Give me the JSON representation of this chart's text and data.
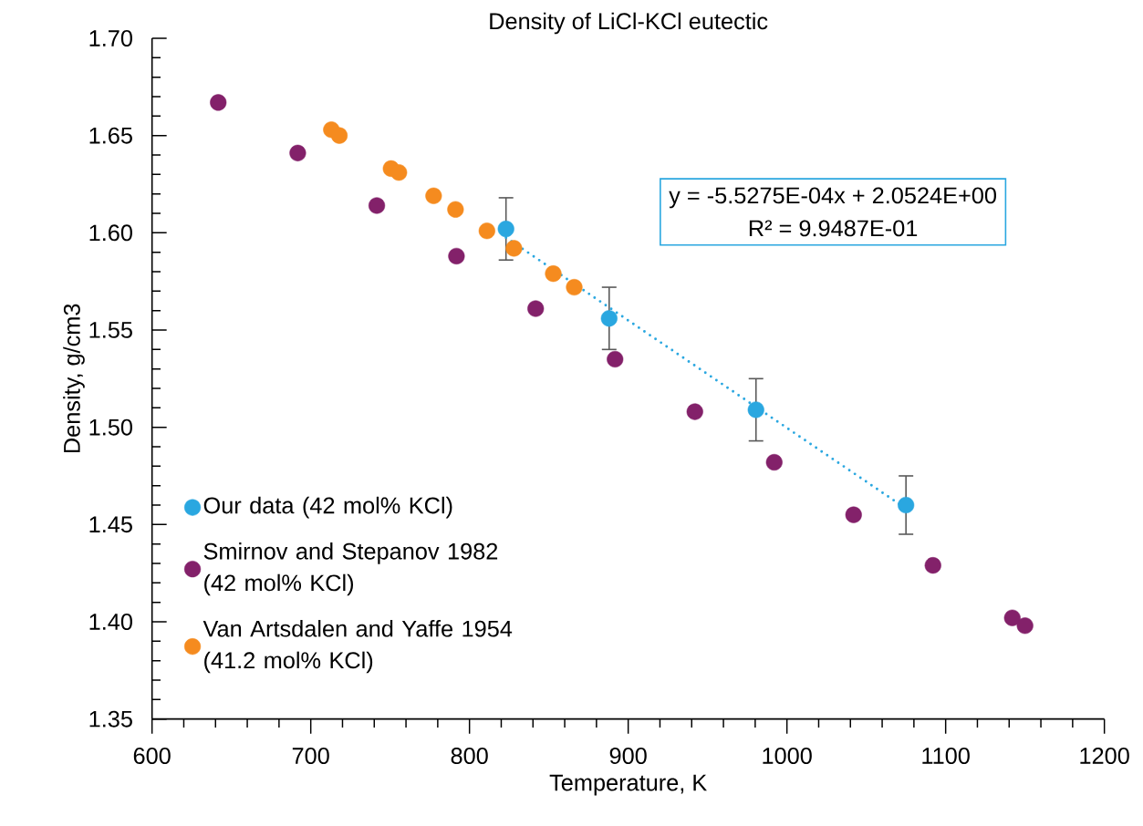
{
  "chart_data": {
    "type": "scatter",
    "title": "Density of LiCl-KCl eutectic",
    "xlabel": "Temperature, K",
    "ylabel": "Density, g/cm3",
    "xlim": [
      600,
      1200
    ],
    "xticks": [
      600,
      700,
      800,
      900,
      1000,
      1100,
      1200
    ],
    "ylim": [
      1.35,
      1.7
    ],
    "yticks": [
      {
        "value": 1.35,
        "label": "1.35"
      },
      {
        "value": 1.4,
        "label": "1.40"
      },
      {
        "value": 1.45,
        "label": "1.45"
      },
      {
        "value": 1.5,
        "label": "1.50"
      },
      {
        "value": 1.55,
        "label": "1.55"
      },
      {
        "value": 1.6,
        "label": "1.60"
      },
      {
        "value": 1.65,
        "label": "1.65"
      },
      {
        "value": 1.7,
        "label": "1.70"
      }
    ],
    "grid": false,
    "legend": "bottom left",
    "marker": "circle",
    "annotations": [
      "y = -5.5275E-04x + 2.0524E+00",
      "R² = 9.9487E-01"
    ],
    "series": [
      {
        "name": "Our data (42 mol% KCl)",
        "color": "#2aa7e0",
        "x": [
          823,
          888,
          980.5,
          1075
        ],
        "values": [
          1.602,
          1.556,
          1.509,
          1.46
        ],
        "errors": [
          0.016,
          0.016,
          0.016,
          0.015
        ]
      },
      {
        "name": "Smirnov and Stepanov 1982 (42 mol% KCl)",
        "color": "#83216a",
        "x": [
          641.7,
          691.8,
          741.6,
          791.8,
          841.7,
          891.7,
          942,
          992,
          1042,
          1092,
          1142,
          1150
        ],
        "values": [
          1.667,
          1.641,
          1.614,
          1.588,
          1.561,
          1.535,
          1.508,
          1.482,
          1.455,
          1.429,
          1.402,
          1.398
        ]
      },
      {
        "name": "Van Artsdalen and Yaffe 1954 (41.2 mol% KCl)",
        "color": "#f58b1f",
        "x": [
          713,
          718,
          750.6,
          755.5,
          777.4,
          791.2,
          811,
          828,
          852.8,
          866
        ],
        "values": [
          1.653,
          1.65,
          1.633,
          1.631,
          1.619,
          1.612,
          1.601,
          1.592,
          1.579,
          1.572
        ]
      },
      {
        "type": "line",
        "color": "#2aa7e0",
        "marker": "none",
        "line_style": "dotted",
        "x": [
          823,
          1075
        ],
        "values": [
          1.5975,
          1.4582
        ]
      }
    ]
  }
}
